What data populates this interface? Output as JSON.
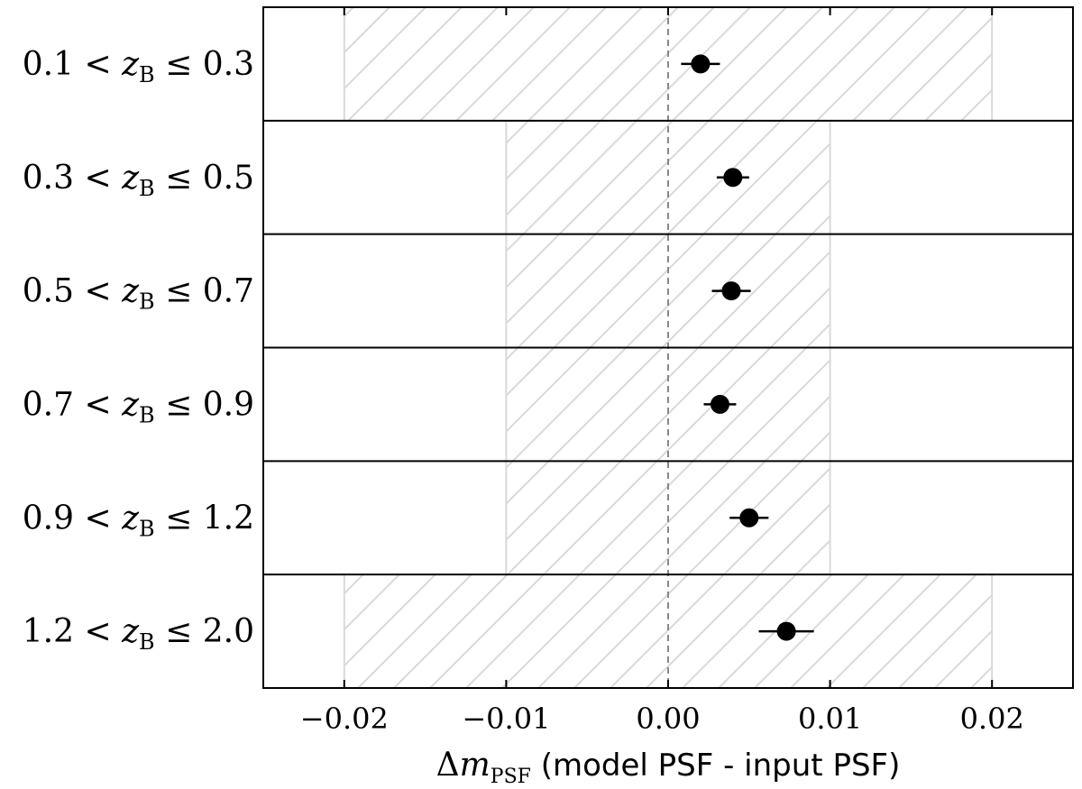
{
  "chart_data": {
    "type": "scatter",
    "xlabel": {
      "delta": "Δ",
      "m": "m",
      "sub": "PSF",
      "text": " (model PSF - input PSF)"
    },
    "xlim": [
      -0.025,
      0.025
    ],
    "x_ticks": [
      -0.02,
      -0.01,
      0.0,
      0.01,
      0.02
    ],
    "x_tick_labels": [
      "−0.02",
      "−0.01",
      "0.00",
      "0.01",
      "0.02"
    ],
    "reference_line_x": 0.0,
    "grid": false,
    "rows": [
      {
        "label_lo": "0.1 <",
        "var": "z",
        "sub": "B",
        "label_hi": "≤ 0.3",
        "x": 0.002,
        "xerr": 0.0012,
        "band": 0.02
      },
      {
        "label_lo": "0.3 <",
        "var": "z",
        "sub": "B",
        "label_hi": "≤ 0.5",
        "x": 0.004,
        "xerr": 0.001,
        "band": 0.01
      },
      {
        "label_lo": "0.5 <",
        "var": "z",
        "sub": "B",
        "label_hi": "≤ 0.7",
        "x": 0.0039,
        "xerr": 0.0012,
        "band": 0.01
      },
      {
        "label_lo": "0.7 <",
        "var": "z",
        "sub": "B",
        "label_hi": "≤ 0.9",
        "x": 0.0032,
        "xerr": 0.001,
        "band": 0.01
      },
      {
        "label_lo": "0.9 <",
        "var": "z",
        "sub": "B",
        "label_hi": "≤ 1.2",
        "x": 0.005,
        "xerr": 0.0012,
        "band": 0.01
      },
      {
        "label_lo": "1.2 <",
        "var": "z",
        "sub": "B",
        "label_hi": "≤ 2.0",
        "x": 0.0073,
        "xerr": 0.0017,
        "band": 0.02
      }
    ],
    "colors": {
      "marker": "#000000",
      "band_line": "#d9d9d9",
      "hatch": "#d9d9d9",
      "zero_line": "#888888",
      "frame": "#000000"
    }
  }
}
